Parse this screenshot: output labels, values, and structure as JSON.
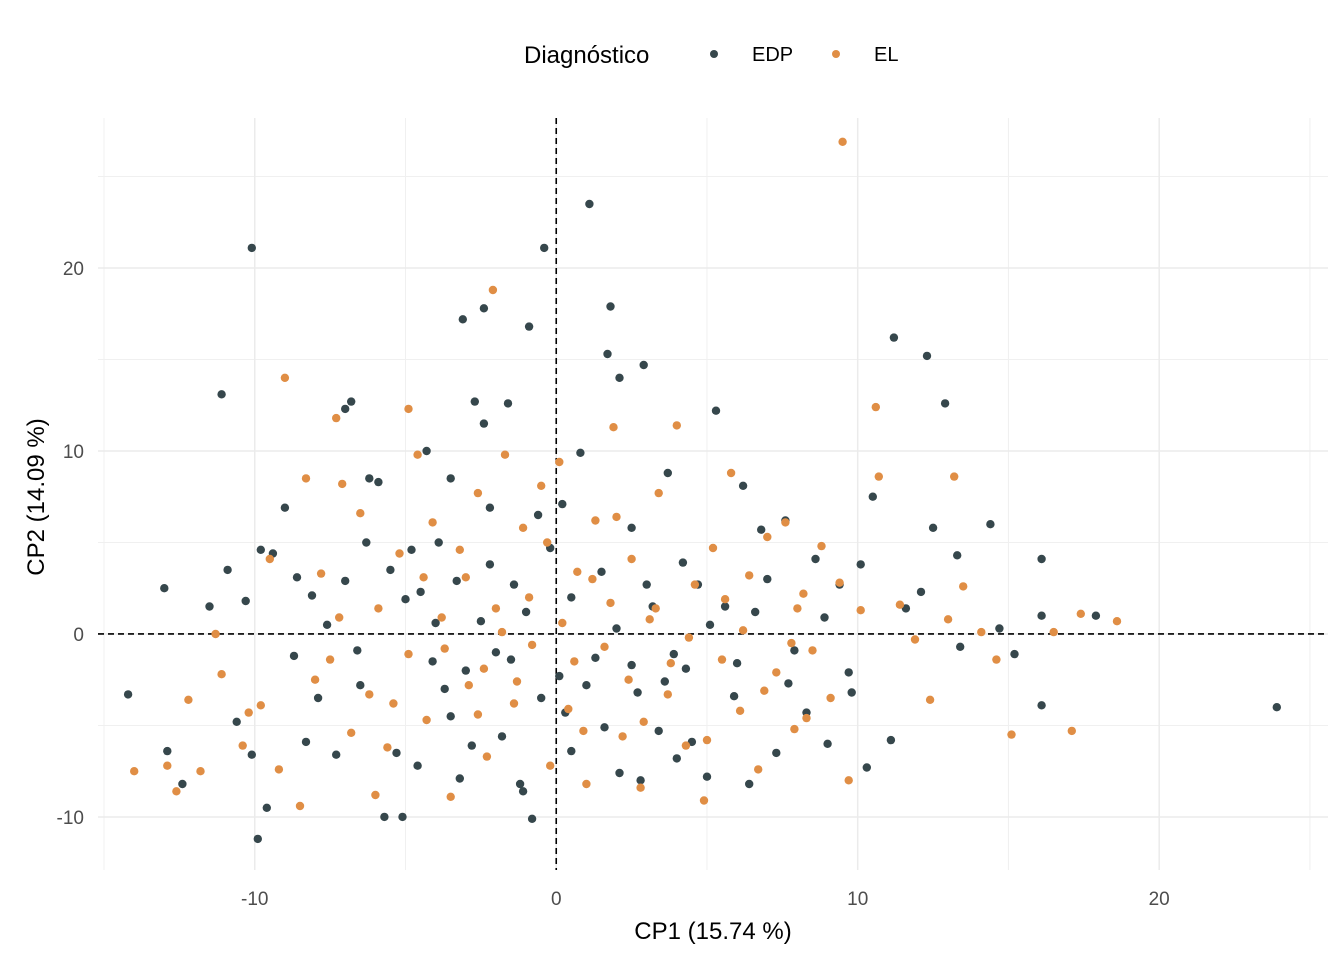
{
  "chart_data": {
    "type": "scatter",
    "title": "",
    "xlabel": "CP1 (15.74 %)",
    "ylabel": "CP2 (14.09 %)",
    "xlim": [
      -15.2,
      25.6
    ],
    "ylim": [
      -12.9,
      28.2
    ],
    "x_ticks": [
      -10,
      0,
      10,
      20
    ],
    "y_ticks": [
      -10,
      0,
      10,
      20
    ],
    "x_tick_labels": [
      "-10",
      "0",
      "10",
      "20"
    ],
    "y_tick_labels": [
      "-10",
      "0",
      "10",
      "20"
    ],
    "reference_lines": {
      "x": 0,
      "y": 0,
      "style": "dashed"
    },
    "grid": true,
    "legend": {
      "title": "Diagnóstico",
      "position": "top"
    },
    "series": [
      {
        "name": "EDP",
        "color": "#36474C",
        "points": [
          [
            -10.1,
            21.1
          ],
          [
            -11.1,
            13.1
          ],
          [
            -14.2,
            -3.3
          ],
          [
            -13.0,
            2.5
          ],
          [
            -12.9,
            -6.4
          ],
          [
            -12.4,
            -8.2
          ],
          [
            -11.5,
            1.5
          ],
          [
            -10.9,
            3.5
          ],
          [
            -10.6,
            -4.8
          ],
          [
            -10.3,
            1.8
          ],
          [
            -10.1,
            -6.6
          ],
          [
            -9.8,
            4.6
          ],
          [
            -9.9,
            -11.2
          ],
          [
            -9.6,
            -9.5
          ],
          [
            -9.4,
            4.4
          ],
          [
            -9.0,
            6.9
          ],
          [
            -8.6,
            3.1
          ],
          [
            -8.7,
            -1.2
          ],
          [
            -8.3,
            -5.9
          ],
          [
            -8.1,
            2.1
          ],
          [
            -7.6,
            0.5
          ],
          [
            -7.9,
            -3.5
          ],
          [
            -7.3,
            -6.6
          ],
          [
            -7.0,
            2.9
          ],
          [
            -6.8,
            12.7
          ],
          [
            -7.0,
            12.3
          ],
          [
            -6.6,
            -0.9
          ],
          [
            -6.3,
            5.0
          ],
          [
            -6.2,
            8.5
          ],
          [
            -5.9,
            8.3
          ],
          [
            -5.7,
            -10.0
          ],
          [
            -5.5,
            3.5
          ],
          [
            -5.3,
            -6.5
          ],
          [
            -5.1,
            -10.0
          ],
          [
            -4.8,
            4.6
          ],
          [
            -4.5,
            2.3
          ],
          [
            -4.3,
            10.0
          ],
          [
            -4.1,
            -1.5
          ],
          [
            -3.9,
            5.0
          ],
          [
            -3.7,
            -3.0
          ],
          [
            -3.5,
            8.5
          ],
          [
            -3.3,
            2.9
          ],
          [
            -3.1,
            17.2
          ],
          [
            -2.8,
            -6.1
          ],
          [
            -2.7,
            12.7
          ],
          [
            -2.4,
            11.5
          ],
          [
            -2.4,
            17.8
          ],
          [
            -2.2,
            6.9
          ],
          [
            -2.0,
            -1.0
          ],
          [
            -1.8,
            -5.6
          ],
          [
            -1.6,
            12.6
          ],
          [
            -1.4,
            2.7
          ],
          [
            -1.2,
            -8.2
          ],
          [
            -0.9,
            16.8
          ],
          [
            -0.8,
            -10.1
          ],
          [
            -0.6,
            6.5
          ],
          [
            -0.4,
            21.1
          ],
          [
            -0.2,
            4.7
          ],
          [
            0.1,
            -2.3
          ],
          [
            0.2,
            7.1
          ],
          [
            0.5,
            -6.4
          ],
          [
            0.8,
            9.9
          ],
          [
            1.1,
            23.5
          ],
          [
            1.3,
            -1.3
          ],
          [
            1.5,
            3.4
          ],
          [
            1.7,
            15.3
          ],
          [
            1.8,
            17.9
          ],
          [
            2.1,
            -7.6
          ],
          [
            2.1,
            14.0
          ],
          [
            2.5,
            5.8
          ],
          [
            2.7,
            -3.2
          ],
          [
            2.9,
            14.7
          ],
          [
            3.2,
            1.5
          ],
          [
            3.4,
            -5.3
          ],
          [
            3.7,
            8.8
          ],
          [
            3.9,
            -1.1
          ],
          [
            4.2,
            3.9
          ],
          [
            4.5,
            -5.9
          ],
          [
            4.7,
            2.7
          ],
          [
            5.0,
            -7.8
          ],
          [
            5.3,
            12.2
          ],
          [
            5.6,
            1.5
          ],
          [
            5.9,
            -3.4
          ],
          [
            6.2,
            8.1
          ],
          [
            6.4,
            -8.2
          ],
          [
            6.8,
            5.7
          ],
          [
            7.0,
            3.0
          ],
          [
            7.3,
            -6.5
          ],
          [
            7.6,
            6.2
          ],
          [
            7.9,
            -0.9
          ],
          [
            8.3,
            -4.3
          ],
          [
            8.6,
            4.1
          ],
          [
            9.0,
            -6.0
          ],
          [
            9.4,
            2.7
          ],
          [
            9.7,
            -2.1
          ],
          [
            10.1,
            3.8
          ],
          [
            10.3,
            -7.3
          ],
          [
            10.5,
            7.5
          ],
          [
            11.2,
            16.2
          ],
          [
            11.1,
            -5.8
          ],
          [
            11.6,
            1.4
          ],
          [
            12.1,
            2.3
          ],
          [
            12.3,
            15.2
          ],
          [
            12.5,
            5.8
          ],
          [
            12.9,
            12.6
          ],
          [
            13.3,
            4.3
          ],
          [
            13.4,
            -0.7
          ],
          [
            14.4,
            6.0
          ],
          [
            14.7,
            0.3
          ],
          [
            15.2,
            -1.1
          ],
          [
            16.1,
            4.1
          ],
          [
            16.1,
            1.0
          ],
          [
            16.1,
            -3.9
          ],
          [
            17.9,
            1.0
          ],
          [
            23.9,
            -4.0
          ],
          [
            -3.0,
            -2.0
          ],
          [
            -2.5,
            0.7
          ],
          [
            -1.5,
            -1.4
          ],
          [
            -1.0,
            1.2
          ],
          [
            -0.5,
            -3.5
          ],
          [
            0.5,
            2.0
          ],
          [
            1.0,
            -2.8
          ],
          [
            2.0,
            0.3
          ],
          [
            2.5,
            -1.7
          ],
          [
            3.0,
            2.7
          ],
          [
            -4.0,
            0.6
          ],
          [
            -3.5,
            -4.5
          ],
          [
            -2.2,
            3.8
          ],
          [
            0.3,
            -4.3
          ],
          [
            1.6,
            -5.1
          ],
          [
            3.6,
            -2.6
          ],
          [
            4.3,
            -1.9
          ],
          [
            5.1,
            0.5
          ],
          [
            6.0,
            -1.6
          ],
          [
            6.6,
            1.2
          ],
          [
            -6.5,
            -2.8
          ],
          [
            -5.0,
            1.9
          ],
          [
            -4.6,
            -7.2
          ],
          [
            -3.2,
            -7.9
          ],
          [
            -1.1,
            -8.6
          ],
          [
            2.8,
            -8.0
          ],
          [
            4.0,
            -6.8
          ],
          [
            7.7,
            -2.7
          ],
          [
            8.9,
            0.9
          ],
          [
            9.8,
            -3.2
          ]
        ]
      },
      {
        "name": "EL",
        "color": "#E08E45",
        "points": [
          [
            9.5,
            26.9
          ],
          [
            -2.1,
            18.8
          ],
          [
            -9.0,
            14.0
          ],
          [
            -7.3,
            11.8
          ],
          [
            -4.9,
            12.3
          ],
          [
            -14.0,
            -7.5
          ],
          [
            -12.6,
            -8.6
          ],
          [
            -12.2,
            -3.6
          ],
          [
            -11.3,
            0.0
          ],
          [
            -10.2,
            -4.3
          ],
          [
            -9.5,
            4.1
          ],
          [
            -9.2,
            -7.4
          ],
          [
            -8.5,
            -9.4
          ],
          [
            -8.3,
            8.5
          ],
          [
            -7.8,
            3.3
          ],
          [
            -7.5,
            -1.4
          ],
          [
            -7.1,
            8.2
          ],
          [
            -6.8,
            -5.4
          ],
          [
            -6.5,
            6.6
          ],
          [
            -6.2,
            -3.3
          ],
          [
            -5.9,
            1.4
          ],
          [
            -5.6,
            -6.2
          ],
          [
            -5.2,
            4.4
          ],
          [
            -4.9,
            -1.1
          ],
          [
            -4.6,
            9.8
          ],
          [
            -4.3,
            -4.7
          ],
          [
            -4.1,
            6.1
          ],
          [
            -3.8,
            0.9
          ],
          [
            -3.5,
            -8.9
          ],
          [
            -3.2,
            4.6
          ],
          [
            -2.9,
            -2.8
          ],
          [
            -2.6,
            7.7
          ],
          [
            -2.3,
            -6.7
          ],
          [
            -2.0,
            1.4
          ],
          [
            -1.7,
            9.8
          ],
          [
            -1.4,
            -3.8
          ],
          [
            -1.1,
            5.8
          ],
          [
            -0.8,
            -0.6
          ],
          [
            -0.5,
            8.1
          ],
          [
            -0.2,
            -7.2
          ],
          [
            0.1,
            9.4
          ],
          [
            0.4,
            -4.1
          ],
          [
            0.7,
            3.4
          ],
          [
            1.0,
            -8.2
          ],
          [
            1.3,
            6.2
          ],
          [
            1.6,
            -0.7
          ],
          [
            1.9,
            11.3
          ],
          [
            2.2,
            -5.6
          ],
          [
            2.5,
            4.1
          ],
          [
            2.8,
            -8.4
          ],
          [
            3.1,
            0.8
          ],
          [
            3.4,
            7.7
          ],
          [
            3.7,
            -3.3
          ],
          [
            4.0,
            11.4
          ],
          [
            4.3,
            -6.1
          ],
          [
            4.6,
            2.7
          ],
          [
            4.9,
            -9.1
          ],
          [
            5.2,
            4.7
          ],
          [
            5.5,
            -1.4
          ],
          [
            5.8,
            8.8
          ],
          [
            6.1,
            -4.2
          ],
          [
            6.4,
            3.2
          ],
          [
            6.7,
            -7.4
          ],
          [
            7.0,
            5.3
          ],
          [
            7.3,
            -2.1
          ],
          [
            7.6,
            6.1
          ],
          [
            7.9,
            -5.2
          ],
          [
            8.2,
            2.2
          ],
          [
            8.5,
            -0.9
          ],
          [
            8.8,
            4.8
          ],
          [
            9.1,
            -3.5
          ],
          [
            9.4,
            2.8
          ],
          [
            9.7,
            -8.0
          ],
          [
            10.1,
            1.3
          ],
          [
            10.6,
            12.4
          ],
          [
            10.7,
            8.6
          ],
          [
            11.4,
            1.6
          ],
          [
            11.9,
            -0.3
          ],
          [
            12.4,
            -3.6
          ],
          [
            13.0,
            0.8
          ],
          [
            13.2,
            8.6
          ],
          [
            13.5,
            2.6
          ],
          [
            14.1,
            0.1
          ],
          [
            14.6,
            -1.4
          ],
          [
            15.1,
            -5.5
          ],
          [
            16.5,
            0.1
          ],
          [
            17.1,
            -5.3
          ],
          [
            17.4,
            1.1
          ],
          [
            18.6,
            0.7
          ],
          [
            -12.9,
            -7.2
          ],
          [
            -11.8,
            -7.5
          ],
          [
            -11.1,
            -2.2
          ],
          [
            -10.4,
            -6.1
          ],
          [
            -9.8,
            -3.9
          ],
          [
            -6.0,
            -8.8
          ],
          [
            -3.0,
            3.1
          ],
          [
            -1.8,
            0.1
          ],
          [
            -0.9,
            2.0
          ],
          [
            0.6,
            -1.5
          ],
          [
            1.8,
            1.7
          ],
          [
            2.4,
            -2.5
          ],
          [
            3.3,
            1.4
          ],
          [
            -3.7,
            -0.8
          ],
          [
            -2.6,
            -4.4
          ],
          [
            -1.3,
            -2.6
          ],
          [
            0.2,
            0.6
          ],
          [
            1.2,
            3.0
          ],
          [
            2.9,
            -4.8
          ],
          [
            4.4,
            -0.2
          ],
          [
            5.6,
            1.9
          ],
          [
            6.9,
            -3.1
          ],
          [
            7.8,
            -0.5
          ],
          [
            8.3,
            -4.6
          ],
          [
            -8.0,
            -2.5
          ],
          [
            -7.2,
            0.9
          ],
          [
            -5.4,
            -3.8
          ],
          [
            -4.4,
            3.1
          ],
          [
            -2.4,
            -1.9
          ],
          [
            -0.3,
            5.0
          ],
          [
            0.9,
            -5.3
          ],
          [
            2.0,
            6.4
          ],
          [
            3.8,
            -1.6
          ],
          [
            5.0,
            -5.8
          ],
          [
            6.2,
            0.2
          ],
          [
            8.0,
            1.4
          ]
        ]
      }
    ]
  }
}
